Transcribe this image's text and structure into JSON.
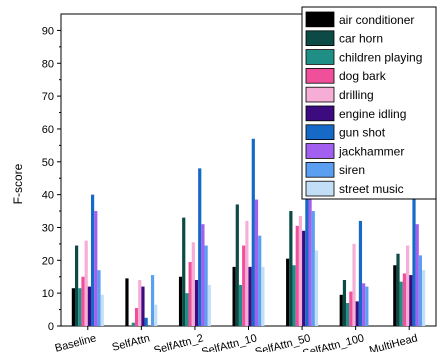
{
  "chart_data": {
    "type": "bar",
    "title": "",
    "xlabel": "",
    "ylabel": "F-score",
    "ylim": [
      0,
      95
    ],
    "yticks": [
      0,
      10,
      20,
      30,
      40,
      50,
      60,
      70,
      80,
      90
    ],
    "grid": false,
    "legend_position": "top-right",
    "categories": [
      "Baseline",
      "SelfAttn",
      "SelfAttn_2",
      "SelfAttn_10",
      "SelfAttn_50",
      "SelfAttn_100",
      "MultiHead"
    ],
    "series": [
      {
        "name": "air conditioner",
        "color": "#000000",
        "values": [
          11.5,
          14.5,
          15,
          18,
          20.5,
          9.5,
          18.5
        ]
      },
      {
        "name": "car horn",
        "color": "#0b4a45",
        "values": [
          24.5,
          0,
          33,
          37,
          35,
          14,
          22
        ]
      },
      {
        "name": "children playing",
        "color": "#1f8f86",
        "values": [
          11.5,
          1,
          10,
          12.5,
          18.5,
          7,
          13.5
        ]
      },
      {
        "name": "dog bark",
        "color": "#f0509a",
        "values": [
          15,
          5.5,
          19.5,
          24.5,
          30.5,
          10.5,
          16
        ]
      },
      {
        "name": "drilling",
        "color": "#f7aed6",
        "values": [
          26,
          14,
          25.5,
          32,
          33.5,
          25,
          24.5
        ]
      },
      {
        "name": "engine idling",
        "color": "#3d0b80",
        "values": [
          12,
          12,
          14,
          18,
          29,
          7.5,
          15.5
        ]
      },
      {
        "name": "gun shot",
        "color": "#1769c7",
        "values": [
          40,
          2.5,
          48,
          57,
          65.5,
          32,
          42.5
        ]
      },
      {
        "name": "jackhammer",
        "color": "#a35ff0",
        "values": [
          35,
          0,
          31,
          38.5,
          51,
          13,
          31
        ]
      },
      {
        "name": "siren",
        "color": "#5a9ff0",
        "values": [
          17,
          15.5,
          24.5,
          27.5,
          35,
          12,
          21.5
        ]
      },
      {
        "name": "street music",
        "color": "#c2dff7",
        "values": [
          9.5,
          6.5,
          12.5,
          18,
          23,
          0,
          17
        ]
      }
    ]
  }
}
